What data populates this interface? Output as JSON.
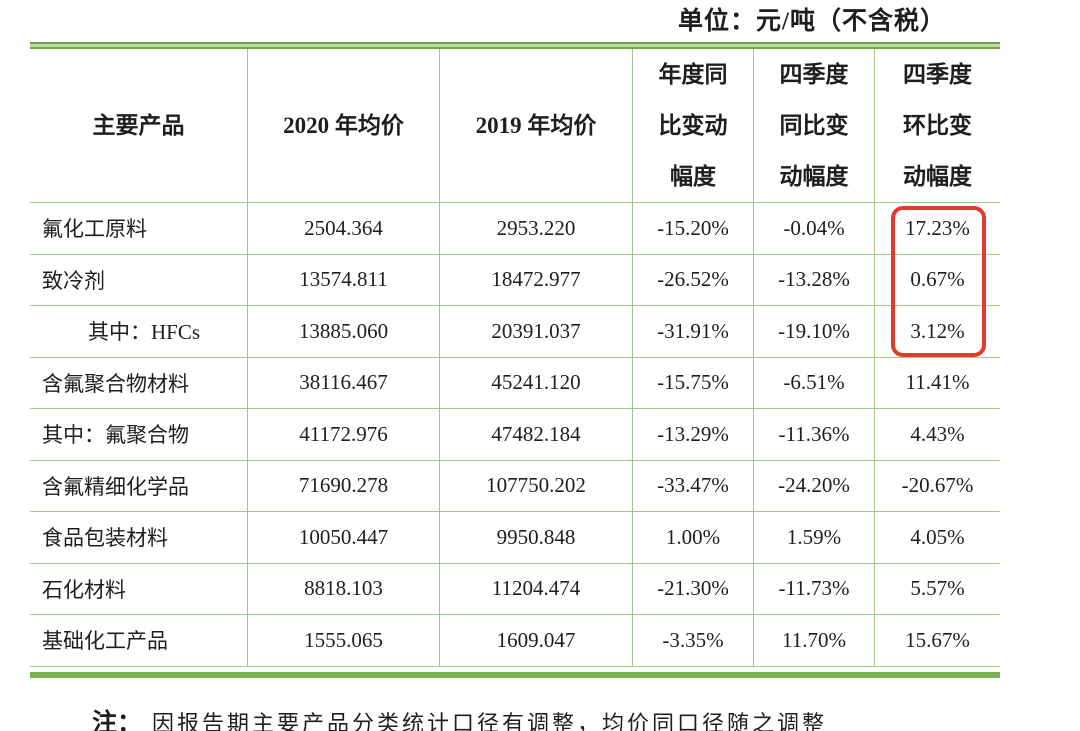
{
  "page": {
    "unit_label": "单位：元/吨（不含税）",
    "note_prefix": "注：",
    "note_text": "因报告期主要产品分类统计口径有调整，均价同口径随之调整"
  },
  "table": {
    "headers": [
      "主要产品",
      "2020 年均价",
      "2019 年均价",
      "年度同\n比变动\n幅度",
      "四季度\n同比变\n动幅度",
      "四季度\n环比变\n动幅度"
    ],
    "rows": [
      {
        "product": "氟化工原料",
        "price_2020": "2504.364",
        "price_2019": "2953.220",
        "yoy_annual": "-15.20%",
        "yoy_q4": "-0.04%",
        "qoq_q4": "17.23%"
      },
      {
        "product": "致冷剂",
        "price_2020": "13574.811",
        "price_2019": "18472.977",
        "yoy_annual": "-26.52%",
        "yoy_q4": "-13.28%",
        "qoq_q4": "0.67%"
      },
      {
        "product": "其中：HFCs",
        "price_2020": "13885.060",
        "price_2019": "20391.037",
        "yoy_annual": "-31.91%",
        "yoy_q4": "-19.10%",
        "qoq_q4": "3.12%"
      },
      {
        "product": "含氟聚合物材料",
        "price_2020": "38116.467",
        "price_2019": "45241.120",
        "yoy_annual": "-15.75%",
        "yoy_q4": "-6.51%",
        "qoq_q4": "11.41%"
      },
      {
        "product": "其中：氟聚合物",
        "price_2020": "41172.976",
        "price_2019": "47482.184",
        "yoy_annual": "-13.29%",
        "yoy_q4": "-11.36%",
        "qoq_q4": "4.43%"
      },
      {
        "product": "含氟精细化学品",
        "price_2020": "71690.278",
        "price_2019": "107750.202",
        "yoy_annual": "-33.47%",
        "yoy_q4": "-24.20%",
        "qoq_q4": "-20.67%"
      },
      {
        "product": "食品包装材料",
        "price_2020": "10050.447",
        "price_2019": "9950.848",
        "yoy_annual": "1.00%",
        "yoy_q4": "1.59%",
        "qoq_q4": "4.05%"
      },
      {
        "product": "石化材料",
        "price_2020": "8818.103",
        "price_2019": "11204.474",
        "yoy_annual": "-21.30%",
        "yoy_q4": "-11.73%",
        "qoq_q4": "5.57%"
      },
      {
        "product": "基础化工产品",
        "price_2020": "1555.065",
        "price_2019": "1609.047",
        "yoy_annual": "-3.35%",
        "yoy_q4": "11.70%",
        "qoq_q4": "15.67%"
      }
    ],
    "highlight_color": "#e23b2e",
    "border_color_thick": "#7ab153",
    "border_color_thin": "#a3c887"
  }
}
